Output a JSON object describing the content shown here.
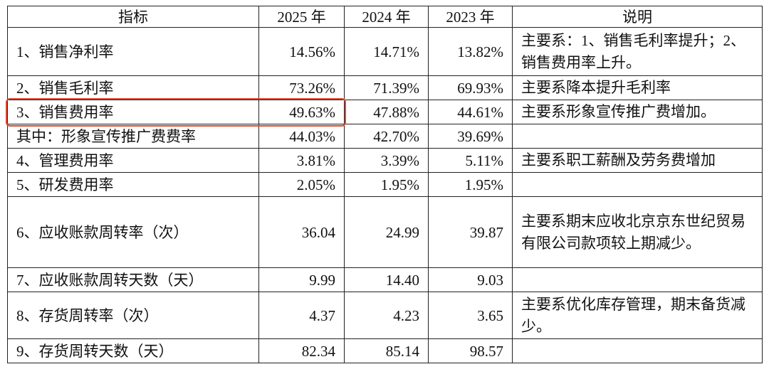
{
  "table": {
    "header": [
      "指标",
      "2025 年",
      "2024 年",
      "2023 年",
      "说明"
    ],
    "rows": [
      [
        "1、销售净利率",
        "14.56%",
        "14.71%",
        "13.82%",
        "主要系：1、销售毛利率提升；2、销售费用率上升。"
      ],
      [
        "2、销售毛利率",
        "73.26%",
        "71.39%",
        "69.93%",
        "主要系降本提升毛利率"
      ],
      [
        "3、销售费用率",
        "49.63%",
        "47.88%",
        "44.61%",
        "主要系形象宣传推广费增加。"
      ],
      [
        "其中：形象宣传推广费费率",
        "44.03%",
        "42.70%",
        "39.69%"
      ],
      [
        "4、管理费用率",
        "3.81%",
        "3.39%",
        "5.11%",
        "主要系职工薪酬及劳务费增加"
      ],
      [
        "5、研发费用率",
        "2.05%",
        "1.95%",
        "1.95%"
      ],
      [
        "6、应收账款周转率（次）",
        "36.04",
        "24.99",
        "39.87",
        "主要系期末应收北京京东世纪贸易有限公司款项较上期减少。"
      ],
      [
        "7、应收账款周转天数（天）",
        "9.99",
        "14.40",
        "9.03"
      ],
      [
        "8、存货周转率（次）",
        "4.37",
        "4.23",
        "3.65",
        "主要系优化库存管理，期末备货减少。"
      ],
      [
        "9、存货周转天数（天）",
        "82.34",
        "85.14",
        "98.57"
      ]
    ]
  }
}
